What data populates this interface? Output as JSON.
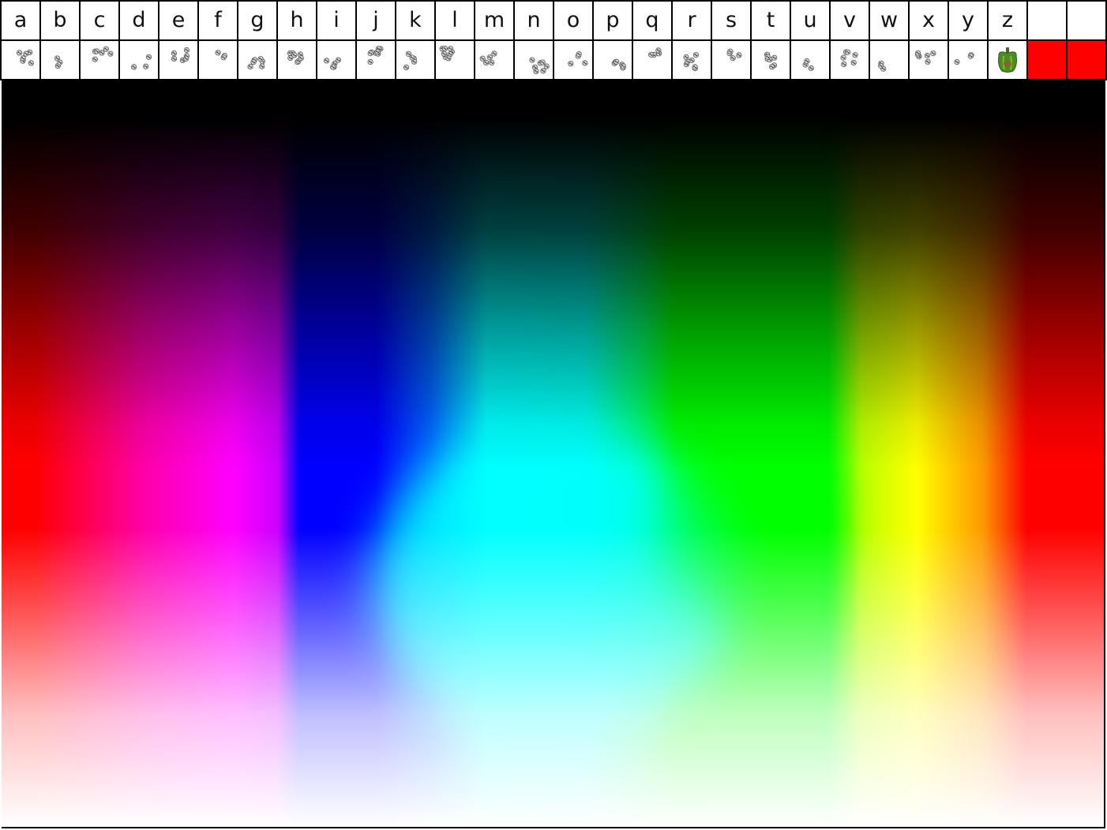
{
  "letters": [
    "a",
    "b",
    "c",
    "d",
    "e",
    "f",
    "g",
    "h",
    "i",
    "j",
    "k",
    "l",
    "m",
    "n",
    "o",
    "p",
    "q",
    "r",
    "s",
    "t",
    "u",
    "v",
    "w",
    "x",
    "y",
    "z",
    "",
    ""
  ],
  "second_row": [
    {
      "kind": "glyph",
      "icon": "dice-glyph-a"
    },
    {
      "kind": "glyph",
      "icon": "dice-glyph-b"
    },
    {
      "kind": "glyph",
      "icon": "dice-glyph-c"
    },
    {
      "kind": "glyph",
      "icon": "dice-glyph-d"
    },
    {
      "kind": "glyph",
      "icon": "dice-glyph-e"
    },
    {
      "kind": "glyph",
      "icon": "dice-glyph-f"
    },
    {
      "kind": "glyph",
      "icon": "dice-glyph-g"
    },
    {
      "kind": "glyph",
      "icon": "dice-glyph-h"
    },
    {
      "kind": "glyph",
      "icon": "dice-glyph-i"
    },
    {
      "kind": "glyph",
      "icon": "dice-glyph-j"
    },
    {
      "kind": "glyph",
      "icon": "dice-glyph-k"
    },
    {
      "kind": "glyph",
      "icon": "dice-glyph-l"
    },
    {
      "kind": "glyph",
      "icon": "dice-glyph-m"
    },
    {
      "kind": "glyph",
      "icon": "dice-glyph-n"
    },
    {
      "kind": "glyph",
      "icon": "dice-glyph-o"
    },
    {
      "kind": "glyph",
      "icon": "dice-glyph-p"
    },
    {
      "kind": "glyph",
      "icon": "dice-glyph-q"
    },
    {
      "kind": "glyph",
      "icon": "dice-glyph-r"
    },
    {
      "kind": "glyph",
      "icon": "dice-glyph-s"
    },
    {
      "kind": "glyph",
      "icon": "dice-glyph-t"
    },
    {
      "kind": "glyph",
      "icon": "dice-glyph-u"
    },
    {
      "kind": "glyph",
      "icon": "dice-glyph-v"
    },
    {
      "kind": "glyph",
      "icon": "dice-glyph-w"
    },
    {
      "kind": "glyph",
      "icon": "dice-glyph-x"
    },
    {
      "kind": "glyph",
      "icon": "dice-glyph-y"
    },
    {
      "kind": "pepper",
      "icon": "green-pepper-icon"
    },
    {
      "kind": "swatch",
      "color": "#ff0000"
    },
    {
      "kind": "swatch",
      "color": "#ff0000"
    }
  ],
  "canvas": {
    "hues": [
      "#ff0000",
      "#ff00ff",
      "#0000ff",
      "#00ffff",
      "#00ff00",
      "#ffff00",
      "#ff0000"
    ]
  }
}
